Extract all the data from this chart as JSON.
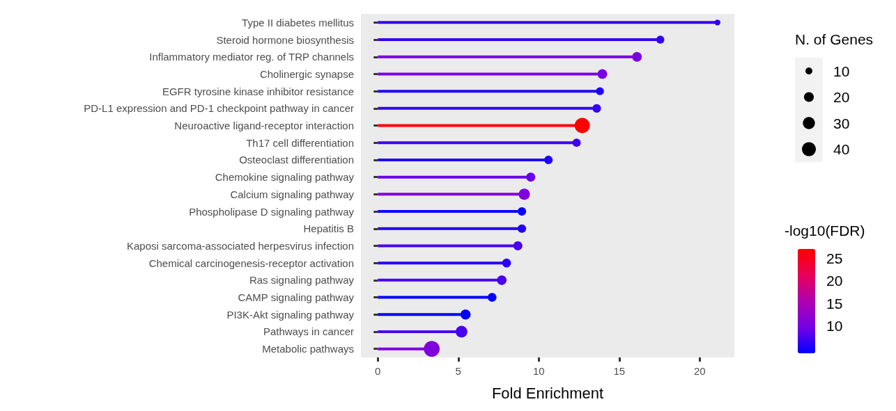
{
  "chart_data": {
    "type": "lollipop",
    "orientation": "horizontal",
    "xlabel": "Fold Enrichment",
    "legend_title": "N. of Genes",
    "clabel": "-log10(FDR)",
    "categories": [
      "Type II diabetes mellitus",
      "Steroid hormone biosynthesis",
      "Inflammatory mediator reg. of TRP channels",
      "Cholinergic synapse",
      "EGFR tyrosine kinase inhibitor resistance",
      "PD-L1 expression and PD-1 checkpoint pathway in cancer",
      "Neuroactive ligand-receptor interaction",
      "Th17 cell differentiation",
      "Osteoclast differentiation",
      "Chemokine signaling pathway",
      "Calcium signaling pathway",
      "Phospholipase D signaling pathway",
      "Hepatitis B",
      "Kaposi sarcoma-associated herpesvirus infection",
      "Chemical carcinogenesis-receptor activation",
      "Ras signaling pathway",
      "CAMP signaling pathway",
      "PI3K-Akt signaling pathway",
      "Pathways in cancer",
      "Metabolic pathways"
    ],
    "series": [
      {
        "values": [
          21.1,
          17.55,
          16.1,
          13.95,
          13.8,
          13.6,
          12.7,
          12.35,
          10.6,
          9.5,
          9.1,
          8.95,
          8.95,
          8.7,
          8.0,
          7.7,
          7.1,
          5.45,
          5.2,
          3.35
        ],
        "sizes": [
          7,
          13,
          19,
          19,
          13,
          15,
          48,
          14,
          15,
          17,
          26,
          15,
          15,
          17,
          16,
          19,
          16,
          21,
          28,
          52
        ],
        "cvalues": [
          6.5,
          6.5,
          10,
          10,
          5.5,
          6.5,
          27,
          7,
          5.5,
          9,
          10.5,
          4.5,
          5.7,
          7.5,
          6,
          7.5,
          4,
          4,
          7.5,
          10.5
        ]
      }
    ],
    "xlim": [
      -1.05,
      22.15
    ],
    "xticks": [
      0,
      5,
      10,
      15,
      20
    ],
    "size_legend": [
      10,
      20,
      30,
      40
    ],
    "clim": [
      4,
      27
    ],
    "cticks": [
      10,
      15,
      20,
      25
    ],
    "colors": [
      "#0000ff",
      "#7800e4",
      "#b000b0",
      "#e8005a",
      "#ff0000"
    ]
  }
}
